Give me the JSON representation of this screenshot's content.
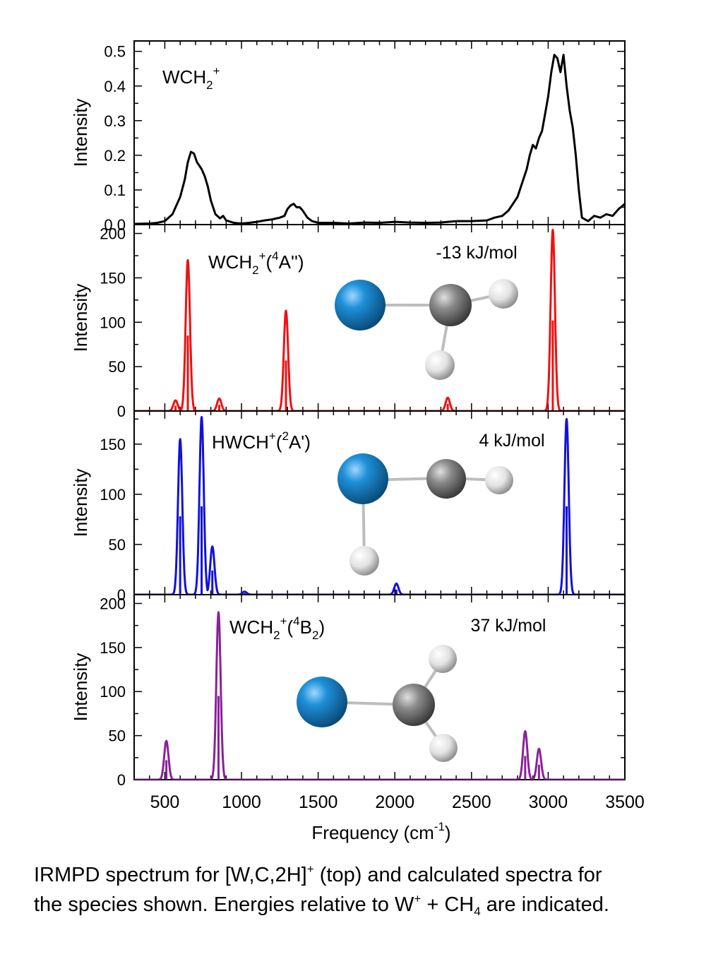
{
  "chart_data": {
    "type": "line",
    "xlabel": "Frequency (cm",
    "xlabel_sup": "-1",
    "xlabel_end": ")",
    "xlim": [
      300,
      3500
    ],
    "xticks": [
      500,
      1000,
      1500,
      2000,
      2500,
      3000,
      3500
    ],
    "panels": [
      {
        "id": "exp",
        "ylabel": "Intensity",
        "ylim": [
          0,
          0.53
        ],
        "yticks": [
          "0.0",
          "0.1",
          "0.2",
          "0.3",
          "0.4",
          "0.5"
        ],
        "color": "#000000",
        "label": {
          "main": "WCH",
          "sub": "2",
          "sup": "+",
          "rest": ""
        },
        "energy": "",
        "spectrum": [
          [
            300,
            0.002
          ],
          [
            400,
            0.003
          ],
          [
            450,
            0.005
          ],
          [
            500,
            0.01
          ],
          [
            550,
            0.03
          ],
          [
            600,
            0.08
          ],
          [
            630,
            0.13
          ],
          [
            650,
            0.18
          ],
          [
            670,
            0.21
          ],
          [
            690,
            0.205
          ],
          [
            710,
            0.18
          ],
          [
            740,
            0.16
          ],
          [
            760,
            0.14
          ],
          [
            780,
            0.11
          ],
          [
            800,
            0.07
          ],
          [
            830,
            0.03
          ],
          [
            860,
            0.018
          ],
          [
            880,
            0.025
          ],
          [
            900,
            0.012
          ],
          [
            950,
            0.005
          ],
          [
            1000,
            0.003
          ],
          [
            1050,
            0.005
          ],
          [
            1100,
            0.008
          ],
          [
            1150,
            0.012
          ],
          [
            1200,
            0.015
          ],
          [
            1250,
            0.02
          ],
          [
            1280,
            0.025
          ],
          [
            1300,
            0.045
          ],
          [
            1320,
            0.055
          ],
          [
            1340,
            0.06
          ],
          [
            1360,
            0.05
          ],
          [
            1380,
            0.05
          ],
          [
            1400,
            0.04
          ],
          [
            1430,
            0.02
          ],
          [
            1460,
            0.01
          ],
          [
            1500,
            0.005
          ],
          [
            1600,
            0.005
          ],
          [
            1700,
            0.003
          ],
          [
            1800,
            0.006
          ],
          [
            1900,
            0.005
          ],
          [
            2000,
            0.008
          ],
          [
            2100,
            0.006
          ],
          [
            2200,
            0.005
          ],
          [
            2300,
            0.006
          ],
          [
            2400,
            0.01
          ],
          [
            2500,
            0.01
          ],
          [
            2600,
            0.012
          ],
          [
            2650,
            0.02
          ],
          [
            2700,
            0.025
          ],
          [
            2740,
            0.04
          ],
          [
            2770,
            0.06
          ],
          [
            2800,
            0.08
          ],
          [
            2830,
            0.12
          ],
          [
            2860,
            0.16
          ],
          [
            2880,
            0.2
          ],
          [
            2900,
            0.23
          ],
          [
            2920,
            0.22
          ],
          [
            2940,
            0.25
          ],
          [
            2960,
            0.27
          ],
          [
            2980,
            0.32
          ],
          [
            3000,
            0.37
          ],
          [
            3020,
            0.44
          ],
          [
            3040,
            0.49
          ],
          [
            3060,
            0.48
          ],
          [
            3080,
            0.44
          ],
          [
            3100,
            0.49
          ],
          [
            3120,
            0.4
          ],
          [
            3140,
            0.33
          ],
          [
            3160,
            0.28
          ],
          [
            3180,
            0.2
          ],
          [
            3200,
            0.1
          ],
          [
            3220,
            0.02
          ],
          [
            3260,
            0.01
          ],
          [
            3300,
            0.025
          ],
          [
            3340,
            0.02
          ],
          [
            3380,
            0.03
          ],
          [
            3420,
            0.025
          ],
          [
            3460,
            0.045
          ],
          [
            3500,
            0.06
          ]
        ]
      },
      {
        "id": "4A2",
        "ylabel": "Intensity",
        "ylim": [
          0,
          210
        ],
        "yticks": [
          "0",
          "50",
          "100",
          "150",
          "200"
        ],
        "color": "#ee1111",
        "label": {
          "main": "WCH",
          "sub": "2",
          "sup": "+",
          "rest": "(",
          "sup2": "4",
          "rest2": "A'')"
        },
        "energy": "-13 kJ/mol",
        "peaks": [
          [
            570,
            12
          ],
          [
            650,
            170
          ],
          [
            855,
            14
          ],
          [
            1290,
            113
          ],
          [
            2345,
            15
          ],
          [
            3030,
            204
          ]
        ],
        "sticks": [
          [
            570,
            6
          ],
          [
            650,
            85
          ],
          [
            855,
            7
          ],
          [
            1290,
            57
          ],
          [
            2345,
            8
          ],
          [
            3030,
            102
          ]
        ]
      },
      {
        "id": "2Ap",
        "ylabel": "Intensity",
        "ylim": [
          0,
          183
        ],
        "yticks": [
          "0",
          "50",
          "100",
          "150"
        ],
        "color": "#1111dd",
        "label": {
          "main": "HWCH",
          "sub": "",
          "sup": "+",
          "rest": "(",
          "sup2": "2",
          "rest2": "A')"
        },
        "energy": "4 kJ/mol",
        "peaks": [
          [
            600,
            155
          ],
          [
            740,
            177
          ],
          [
            810,
            48
          ],
          [
            1020,
            3
          ],
          [
            2010,
            11
          ],
          [
            3120,
            175
          ]
        ],
        "sticks": [
          [
            600,
            78
          ],
          [
            740,
            88
          ],
          [
            810,
            24
          ],
          [
            1020,
            1.5
          ],
          [
            2010,
            5
          ],
          [
            3120,
            88
          ]
        ]
      },
      {
        "id": "4B2",
        "ylabel": "Intensity",
        "ylim": [
          0,
          210
        ],
        "yticks": [
          "0",
          "50",
          "100",
          "150",
          "200"
        ],
        "color": "#882299",
        "label": {
          "main": "WCH",
          "sub": "2",
          "sup": "+",
          "rest": "(",
          "sup2": "4",
          "rest2": "B",
          "sub2": "2",
          "rest3": ")"
        },
        "energy": "37 kJ/mol",
        "peaks": [
          [
            510,
            44
          ],
          [
            850,
            190
          ],
          [
            2850,
            55
          ],
          [
            2940,
            35
          ]
        ],
        "sticks": [
          [
            510,
            22
          ],
          [
            850,
            95
          ],
          [
            2850,
            27
          ],
          [
            2940,
            17
          ]
        ]
      }
    ]
  },
  "caption": {
    "line1_a": "IRMPD spectrum for [W,C,2H]",
    "line1_sup": "+",
    "line1_b": " (top) and calculated spectra for",
    "line2_a": "the species shown.   Energies relative to W",
    "line2_sup": "+",
    "line2_b": " + CH",
    "line2_sub": "4",
    "line2_c": " are indicated."
  },
  "colors": {
    "tungsten": "#1e90d8",
    "carbon": "#808080",
    "hydrogen": "#e6e6e6"
  }
}
